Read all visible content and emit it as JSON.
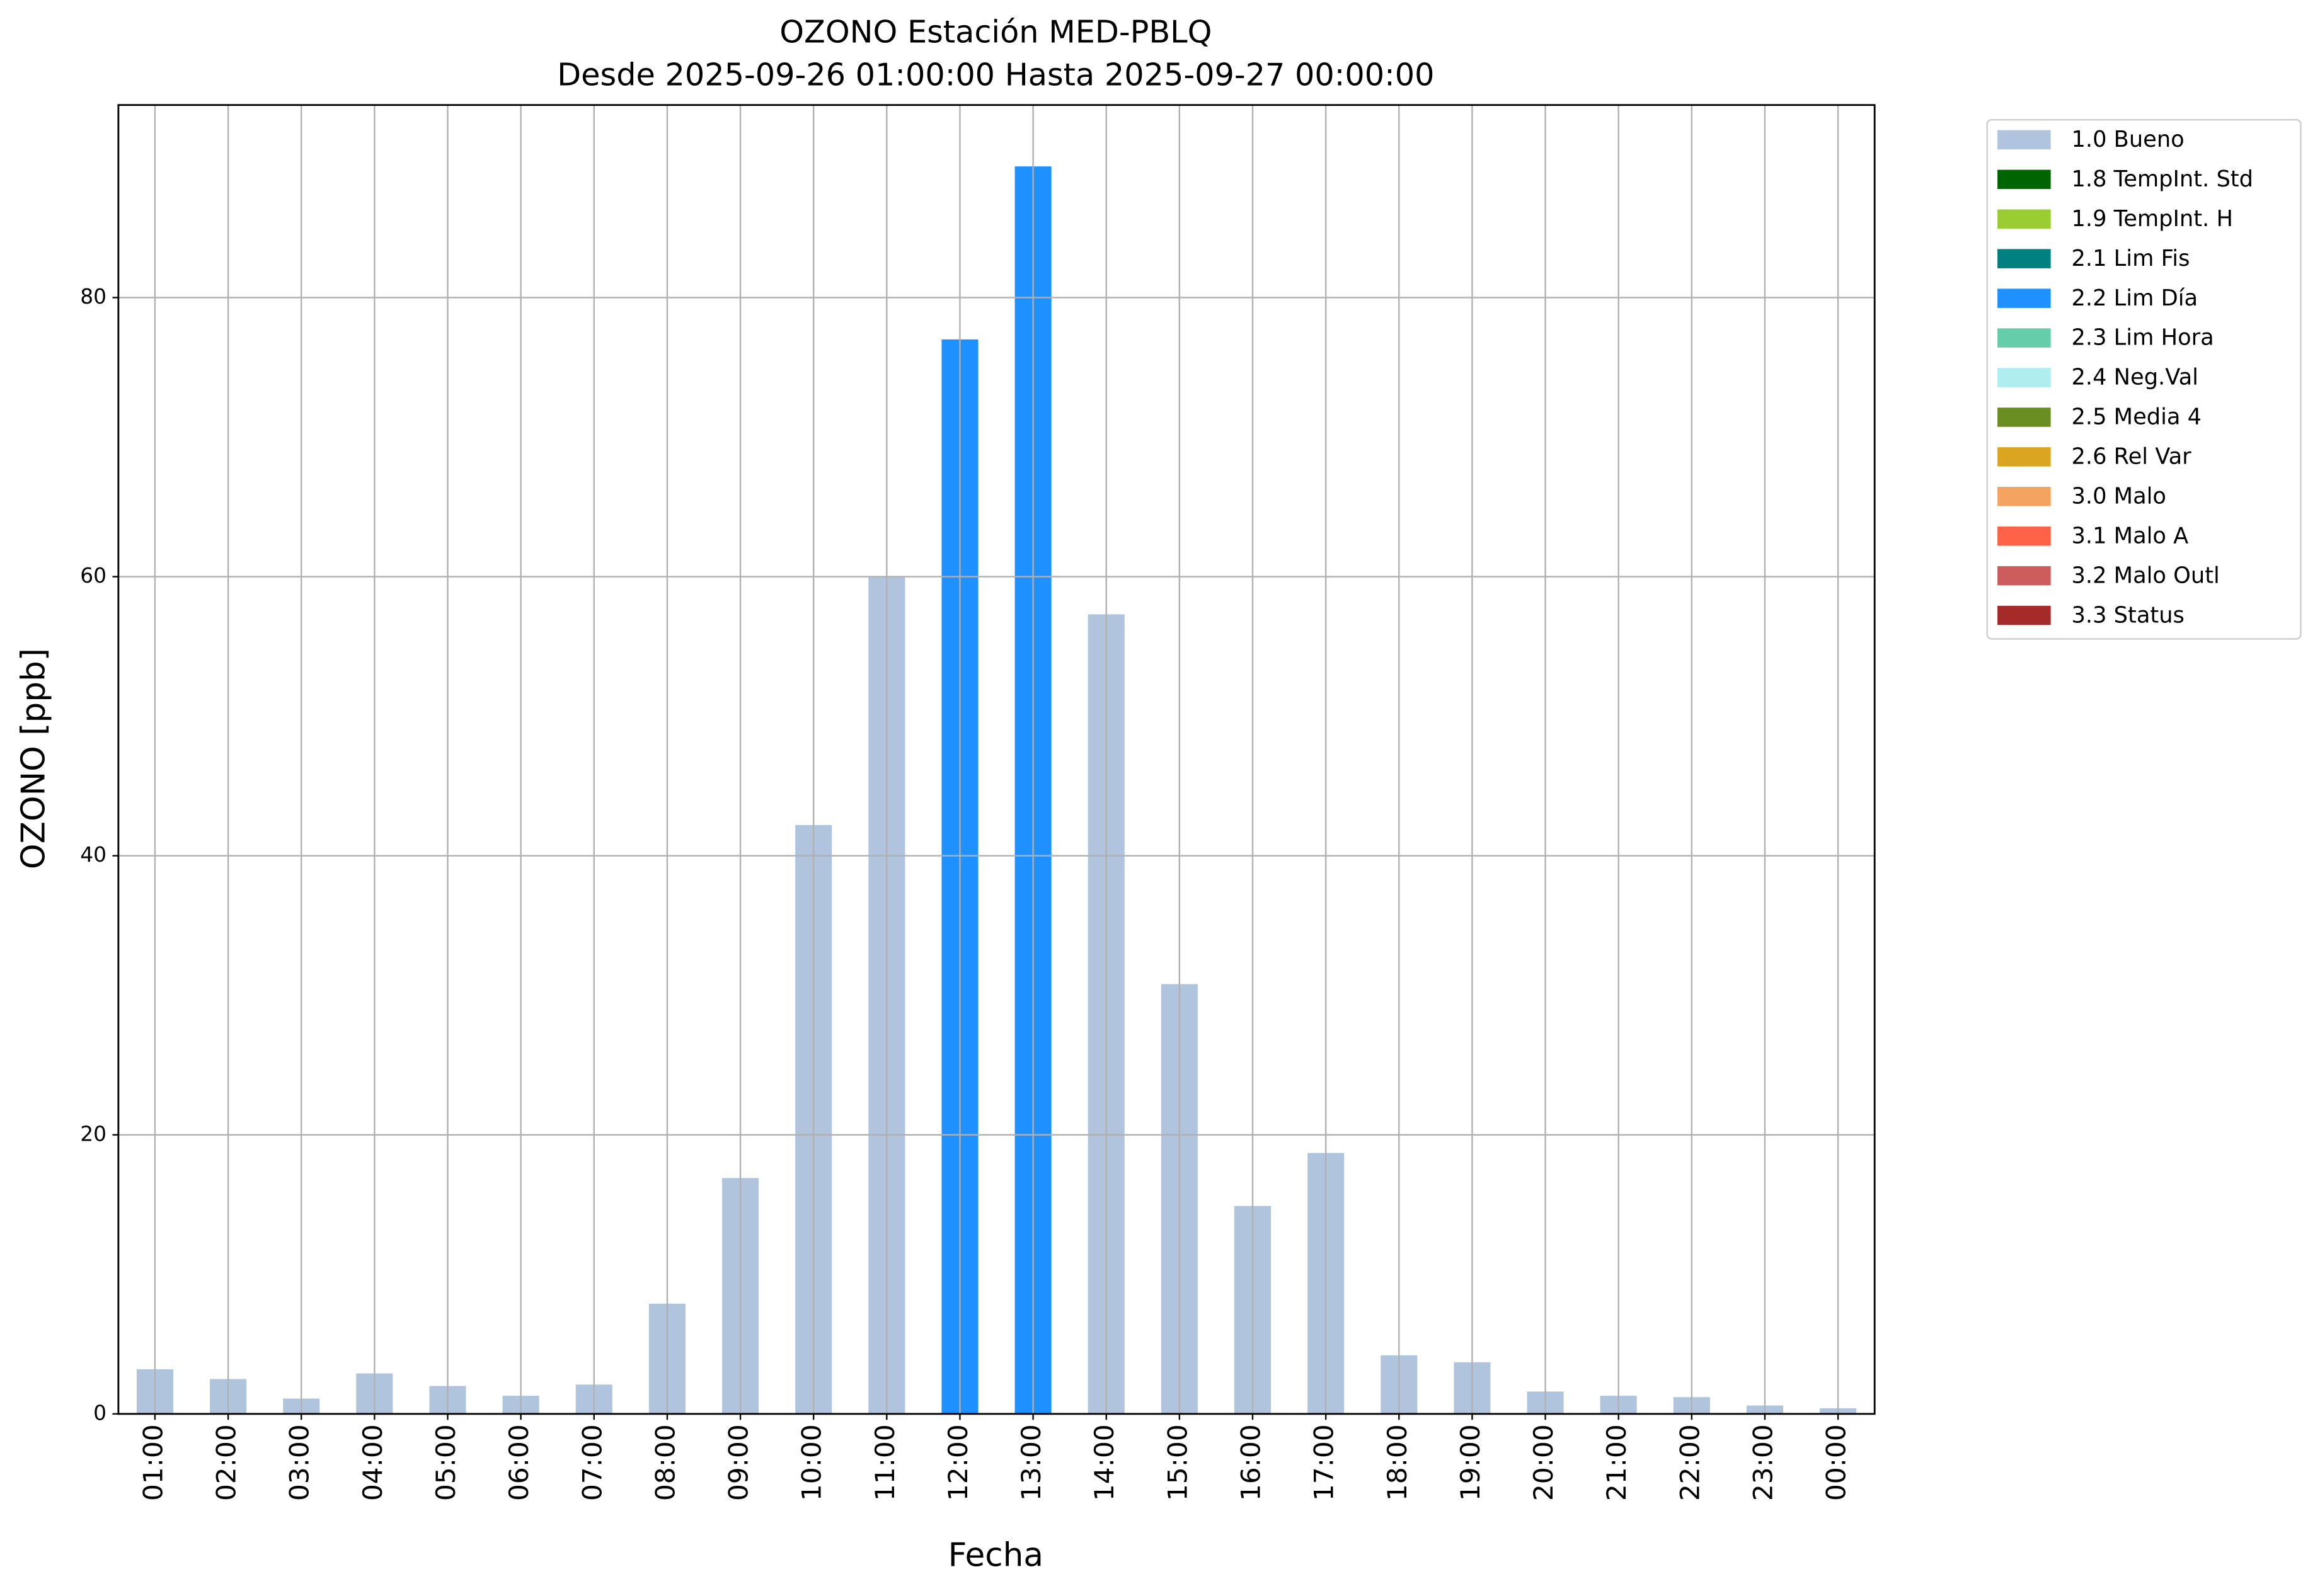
{
  "chart_data": {
    "type": "bar",
    "title": "OZONO Estación MED-PBLQ",
    "subtitle": "Desde 2025-09-26 01:00:00 Hasta 2025-09-27 00:00:00",
    "x_label": "Fecha",
    "y_label": "OZONO [ppb]",
    "categories": [
      "01:00",
      "02:00",
      "03:00",
      "04:00",
      "05:00",
      "06:00",
      "07:00",
      "08:00",
      "09:00",
      "10:00",
      "11:00",
      "12:00",
      "13:00",
      "14:00",
      "15:00",
      "16:00",
      "17:00",
      "18:00",
      "19:00",
      "20:00",
      "21:00",
      "22:00",
      "23:00",
      "00:00"
    ],
    "series": [
      {
        "name": "1.0 Bueno",
        "color": "#b0c4de",
        "values": [
          3.2,
          2.5,
          1.1,
          2.9,
          2.0,
          1.3,
          2.1,
          7.9,
          16.9,
          42.2,
          60.0,
          null,
          null,
          57.3,
          30.8,
          14.9,
          18.7,
          4.2,
          3.7,
          1.6,
          1.3,
          1.2,
          0.6,
          0.4
        ]
      },
      {
        "name": "1.8 TempInt. Std",
        "color": "#006400",
        "values": [
          null,
          null,
          null,
          null,
          null,
          null,
          null,
          null,
          null,
          null,
          null,
          null,
          null,
          null,
          null,
          null,
          null,
          null,
          null,
          null,
          null,
          null,
          null,
          null
        ]
      },
      {
        "name": "1.9 TempInt. H",
        "color": "#9acd32",
        "values": [
          null,
          null,
          null,
          null,
          null,
          null,
          null,
          null,
          null,
          null,
          null,
          null,
          null,
          null,
          null,
          null,
          null,
          null,
          null,
          null,
          null,
          null,
          null,
          null
        ]
      },
      {
        "name": "2.1 Lim Fis",
        "color": "#008080",
        "values": [
          null,
          null,
          null,
          null,
          null,
          null,
          null,
          null,
          null,
          null,
          null,
          null,
          null,
          null,
          null,
          null,
          null,
          null,
          null,
          null,
          null,
          null,
          null,
          null
        ]
      },
      {
        "name": "2.2 Lim Día",
        "color": "#1e90ff",
        "values": [
          null,
          null,
          null,
          null,
          null,
          null,
          null,
          null,
          null,
          null,
          null,
          77.0,
          89.4,
          null,
          null,
          null,
          null,
          null,
          null,
          null,
          null,
          null,
          null,
          null
        ]
      },
      {
        "name": "2.3 Lim Hora",
        "color": "#66cdaa",
        "values": [
          null,
          null,
          null,
          null,
          null,
          null,
          null,
          null,
          null,
          null,
          null,
          null,
          null,
          null,
          null,
          null,
          null,
          null,
          null,
          null,
          null,
          null,
          null,
          null
        ]
      },
      {
        "name": "2.4 Neg.Val",
        "color": "#afeeee",
        "values": [
          null,
          null,
          null,
          null,
          null,
          null,
          null,
          null,
          null,
          null,
          null,
          null,
          null,
          null,
          null,
          null,
          null,
          null,
          null,
          null,
          null,
          null,
          null,
          null
        ]
      },
      {
        "name": "2.5 Media 4",
        "color": "#6b8e23",
        "values": [
          null,
          null,
          null,
          null,
          null,
          null,
          null,
          null,
          null,
          null,
          null,
          null,
          null,
          null,
          null,
          null,
          null,
          null,
          null,
          null,
          null,
          null,
          null,
          null
        ]
      },
      {
        "name": "2.6 Rel Var",
        "color": "#daa520",
        "values": [
          null,
          null,
          null,
          null,
          null,
          null,
          null,
          null,
          null,
          null,
          null,
          null,
          null,
          null,
          null,
          null,
          null,
          null,
          null,
          null,
          null,
          null,
          null,
          null
        ]
      },
      {
        "name": "3.0 Malo",
        "color": "#f4a460",
        "values": [
          null,
          null,
          null,
          null,
          null,
          null,
          null,
          null,
          null,
          null,
          null,
          null,
          null,
          null,
          null,
          null,
          null,
          null,
          null,
          null,
          null,
          null,
          null,
          null
        ]
      },
      {
        "name": "3.1 Malo A",
        "color": "#ff6347",
        "values": [
          null,
          null,
          null,
          null,
          null,
          null,
          null,
          null,
          null,
          null,
          null,
          null,
          null,
          null,
          null,
          null,
          null,
          null,
          null,
          null,
          null,
          null,
          null,
          null
        ]
      },
      {
        "name": "3.2 Malo Outl",
        "color": "#cd5c5c",
        "values": [
          null,
          null,
          null,
          null,
          null,
          null,
          null,
          null,
          null,
          null,
          null,
          null,
          null,
          null,
          null,
          null,
          null,
          null,
          null,
          null,
          null,
          null,
          null,
          null
        ]
      },
      {
        "name": "3.3 Status",
        "color": "#a52a2a",
        "values": [
          null,
          null,
          null,
          null,
          null,
          null,
          null,
          null,
          null,
          null,
          null,
          null,
          null,
          null,
          null,
          null,
          null,
          null,
          null,
          null,
          null,
          null,
          null,
          null
        ]
      }
    ],
    "ylim": [
      0,
      93.8
    ],
    "yticks": [
      0,
      20,
      40,
      60,
      80
    ],
    "grid": true,
    "legend": "outside-upper-right"
  }
}
